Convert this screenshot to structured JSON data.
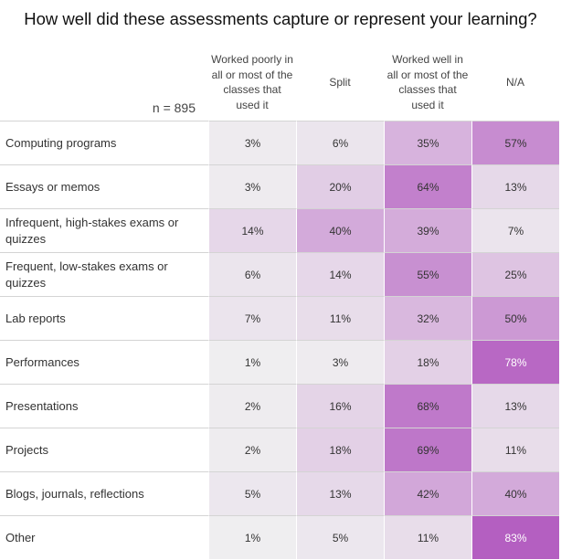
{
  "chart_data": {
    "type": "heatmap",
    "title": "How well did these assessments capture or represent your learning?",
    "sample_size": "n = 895",
    "columns": [
      "Worked poorly in all or most of the classes that used it",
      "Split",
      "Worked well in all or most of the classes that used it",
      "N/A"
    ],
    "categories": [
      "Computing programs",
      "Essays or memos",
      "Infrequent, high-stakes exams or quizzes",
      "Frequent, low-stakes exams or quizzes",
      "Lab reports",
      "Performances",
      "Presentations",
      "Projects",
      "Blogs, journals, reflections",
      "Other"
    ],
    "values": [
      [
        3,
        6,
        35,
        57
      ],
      [
        3,
        20,
        64,
        13
      ],
      [
        14,
        40,
        39,
        7
      ],
      [
        6,
        14,
        55,
        25
      ],
      [
        7,
        11,
        32,
        50
      ],
      [
        1,
        3,
        18,
        78
      ],
      [
        2,
        16,
        68,
        13
      ],
      [
        2,
        18,
        69,
        11
      ],
      [
        5,
        13,
        42,
        40
      ],
      [
        1,
        5,
        11,
        83
      ]
    ],
    "value_labels": [
      [
        "3%",
        "6%",
        "35%",
        "57%"
      ],
      [
        "3%",
        "20%",
        "64%",
        "13%"
      ],
      [
        "14%",
        "40%",
        "39%",
        "7%"
      ],
      [
        "6%",
        "14%",
        "55%",
        "25%"
      ],
      [
        "7%",
        "11%",
        "32%",
        "50%"
      ],
      [
        "1%",
        "3%",
        "18%",
        "78%"
      ],
      [
        "2%",
        "16%",
        "68%",
        "13%"
      ],
      [
        "2%",
        "18%",
        "69%",
        "11%"
      ],
      [
        "5%",
        "13%",
        "42%",
        "40%"
      ],
      [
        "1%",
        "5%",
        "11%",
        "83%"
      ]
    ],
    "color_low": "#efeef0",
    "color_high": "#b45fc1"
  }
}
